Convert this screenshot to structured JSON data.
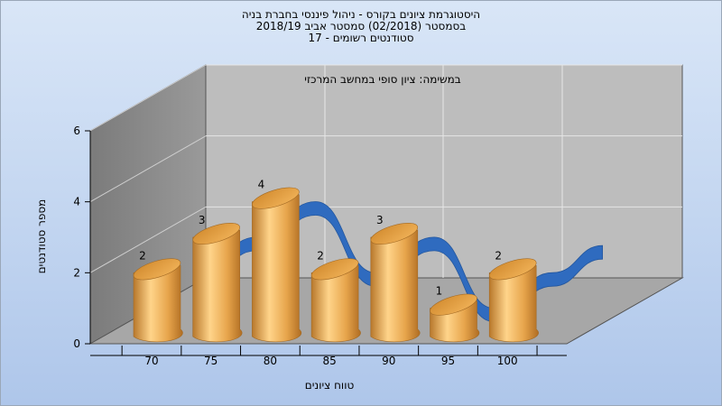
{
  "chart_data": {
    "type": "bar",
    "title": "היסטוגרמת ציונים בקורס - ניהול פיננסי בחברת בניה",
    "subtitle_lines": [
      "בסמסטר  (02/2018)  סמסטר אביב 2018/19",
      "סטודנטים רשומים - 17"
    ],
    "inner_title": "במשימה: ציון סופי במחשב המרכזי",
    "xlabel": "טווח ציונים",
    "ylabel": "מספר סטודנטים",
    "categories": [
      "70",
      "75",
      "80",
      "85",
      "90",
      "95",
      "100"
    ],
    "values": [
      2,
      3,
      4,
      2,
      3,
      1,
      2
    ],
    "yticks": [
      "0",
      "2",
      "4",
      "6"
    ],
    "ylim": [
      0,
      6
    ],
    "grid": true,
    "overlay": {
      "type": "area",
      "values": [
        2,
        3,
        4,
        2,
        3,
        1,
        2
      ],
      "color": "#2f6bbf"
    },
    "bar_color": "#e8a84a"
  }
}
